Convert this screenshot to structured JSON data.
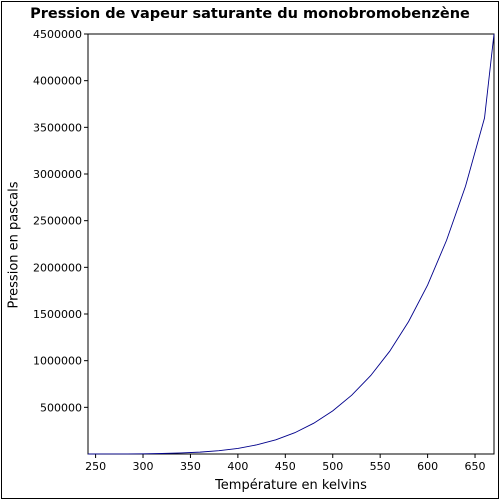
{
  "chart_data": {
    "type": "line",
    "title": "Pression de vapeur saturante du monobromobenzène",
    "xlabel": "Température en kelvins",
    "ylabel": "Pression en pascals",
    "xlim": [
      242,
      670
    ],
    "ylim": [
      0,
      4500000
    ],
    "x_ticks": [
      250,
      300,
      350,
      400,
      450,
      500,
      550,
      600,
      650
    ],
    "y_ticks": [
      500000,
      1000000,
      1500000,
      2000000,
      2500000,
      3000000,
      3500000,
      4000000,
      4500000
    ],
    "x_tick_labels": [
      "250",
      "300",
      "350",
      "400",
      "450",
      "500",
      "550",
      "600",
      "650"
    ],
    "y_tick_labels": [
      "500000",
      "1000000",
      "1500000",
      "2000000",
      "2500000",
      "3000000",
      "3500000",
      "4000000",
      "4500000"
    ],
    "grid": false,
    "colors": {
      "line": "#00008b",
      "axes": "#000000"
    },
    "series": [
      {
        "x": [
          242,
          260,
          280,
          300,
          320,
          340,
          360,
          380,
          400,
          420,
          440,
          460,
          480,
          500,
          520,
          540,
          560,
          580,
          600,
          620,
          640,
          660,
          670
        ],
        "y": [
          0,
          200,
          900,
          2500,
          5500,
          11000,
          20000,
          35000,
          60000,
          98000,
          152000,
          228000,
          330000,
          462000,
          630000,
          840000,
          1100000,
          1420000,
          1810000,
          2290000,
          2870000,
          3600000,
          4500000
        ]
      }
    ]
  }
}
